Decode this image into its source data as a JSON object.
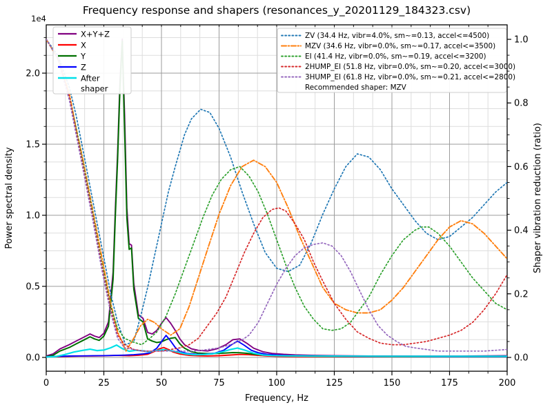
{
  "figure": {
    "title": "Frequency response and shapers (resonances_y_20201129_184323.csv)",
    "offset_text": "1e4",
    "xlabel": "Frequency, Hz",
    "ylabel_left": "Power spectral density",
    "ylabel_right": "Shaper vibration reduction (ratio)"
  },
  "chart_data": {
    "type": "line",
    "title": "Frequency response and shapers (resonances_y_20201129_184323.csv)",
    "xlabel": "Frequency, Hz",
    "ylabel": "Power spectral density",
    "ylabel_right": "Shaper vibration reduction (ratio)",
    "xlim": [
      0,
      200
    ],
    "ylim_left_raw": [
      -1000,
      23300
    ],
    "ylim_right": [
      -0.045,
      1.045
    ],
    "grid": "major+minor",
    "x_ticks": [
      0,
      25,
      50,
      75,
      100,
      125,
      150,
      175,
      200
    ],
    "x_minor_step": 8.3333,
    "y_ticks_left": [
      {
        "v": 0,
        "label": "0.0"
      },
      {
        "v": 5000,
        "label": "0.5"
      },
      {
        "v": 10000,
        "label": "1.0"
      },
      {
        "v": 15000,
        "label": "1.5"
      },
      {
        "v": 20000,
        "label": "2.0"
      }
    ],
    "y_left_minor_step": 1250,
    "y_ticks_right": [
      {
        "v": 0.0,
        "label": "0.0"
      },
      {
        "v": 0.2,
        "label": "0.2"
      },
      {
        "v": 0.4,
        "label": "0.4"
      },
      {
        "v": 0.6,
        "label": "0.6"
      },
      {
        "v": 0.8,
        "label": "0.8"
      },
      {
        "v": 1.0,
        "label": "1.0"
      }
    ],
    "y_right_minor_step": 0.05,
    "colors": {
      "major_grid": "#9b9b9b",
      "minor_grid": "#dddddd",
      "spine": "#000000",
      "legend_border": "#cccccc"
    },
    "psd_series": [
      {
        "name": "X+Y+Z",
        "color": "#800080",
        "style": "solid",
        "width": 1.9,
        "x": [
          0,
          3,
          6,
          10,
          13,
          16,
          19,
          21,
          23,
          25,
          27,
          29,
          30,
          31,
          32,
          33,
          34,
          35,
          36,
          37,
          38,
          40,
          42,
          44,
          46,
          48,
          50,
          52,
          54,
          56,
          58,
          60,
          63,
          66,
          70,
          74,
          78,
          81,
          84,
          87,
          90,
          94,
          98,
          103,
          108,
          115,
          125,
          140,
          160,
          180,
          200
        ],
        "y": [
          100,
          250,
          600,
          900,
          1150,
          1400,
          1650,
          1500,
          1400,
          1700,
          2500,
          6000,
          10500,
          14500,
          19500,
          22400,
          17000,
          10500,
          8000,
          7900,
          5200,
          3000,
          2750,
          1750,
          1650,
          1900,
          2400,
          2800,
          2400,
          1900,
          1300,
          900,
          600,
          500,
          450,
          600,
          900,
          1250,
          1300,
          1000,
          650,
          400,
          280,
          220,
          180,
          150,
          120,
          100,
          90,
          90,
          120
        ]
      },
      {
        "name": "X",
        "color": "#ff0000",
        "style": "solid",
        "width": 1.9,
        "x": [
          0,
          5,
          10,
          15,
          20,
          25,
          30,
          33,
          36,
          40,
          44,
          47,
          49,
          51,
          53,
          55,
          58,
          62,
          66,
          70,
          75,
          80,
          84,
          88,
          92,
          96,
          100,
          110,
          130,
          160,
          200
        ],
        "y": [
          40,
          60,
          80,
          90,
          100,
          110,
          140,
          130,
          120,
          150,
          220,
          420,
          600,
          700,
          560,
          380,
          240,
          140,
          110,
          100,
          120,
          170,
          210,
          190,
          140,
          100,
          80,
          60,
          50,
          45,
          45
        ]
      },
      {
        "name": "Y",
        "color": "#007000",
        "style": "solid",
        "width": 2.0,
        "x": [
          0,
          3,
          6,
          10,
          13,
          16,
          19,
          21,
          23,
          25,
          27,
          29,
          30,
          31,
          32,
          33,
          34,
          35,
          36,
          37,
          38,
          40,
          42,
          44,
          46,
          48,
          50,
          52,
          54,
          56,
          58,
          60,
          63,
          66,
          70,
          74,
          78,
          81,
          84,
          87,
          90,
          94,
          98,
          103,
          108,
          115,
          125,
          140,
          160,
          180,
          200
        ],
        "y": [
          60,
          150,
          450,
          700,
          950,
          1200,
          1450,
          1300,
          1200,
          1500,
          2200,
          5500,
          10000,
          14000,
          19000,
          22250,
          16000,
          9800,
          7600,
          7700,
          4800,
          2750,
          2500,
          1300,
          1150,
          1050,
          1100,
          1250,
          1350,
          1400,
          950,
          650,
          400,
          300,
          270,
          280,
          310,
          340,
          330,
          290,
          230,
          170,
          140,
          110,
          100,
          90,
          80,
          70,
          60,
          60,
          60
        ]
      },
      {
        "name": "Z",
        "color": "#0000ff",
        "style": "solid",
        "width": 1.9,
        "x": [
          0,
          5,
          10,
          15,
          20,
          25,
          30,
          34,
          38,
          42,
          45,
          48,
          50,
          52,
          54,
          56,
          58,
          61,
          65,
          69,
          73,
          77,
          80,
          83,
          86,
          89,
          92,
          96,
          100,
          105,
          110,
          120,
          140,
          160,
          180,
          200
        ],
        "y": [
          50,
          80,
          95,
          105,
          115,
          125,
          140,
          160,
          190,
          250,
          320,
          650,
          1100,
          1550,
          1150,
          700,
          420,
          280,
          220,
          230,
          290,
          500,
          850,
          1150,
          850,
          500,
          330,
          220,
          170,
          130,
          110,
          90,
          75,
          65,
          60,
          60
        ]
      },
      {
        "name": "After shaper",
        "label_lines": [
          "After",
          "shaper"
        ],
        "color": "#00e0e8",
        "style": "solid",
        "width": 2.2,
        "x": [
          0,
          4,
          8,
          12,
          16,
          19,
          22,
          25,
          28,
          30.5,
          33,
          36,
          39,
          42,
          45,
          48,
          51,
          54,
          57,
          60,
          64,
          68,
          72,
          76,
          80,
          83,
          86,
          90,
          94,
          98,
          103,
          110,
          125,
          150,
          200
        ],
        "y": [
          30,
          60,
          200,
          380,
          500,
          580,
          480,
          520,
          680,
          870,
          620,
          430,
          500,
          460,
          400,
          480,
          550,
          480,
          380,
          260,
          190,
          200,
          250,
          380,
          560,
          660,
          520,
          300,
          170,
          130,
          110,
          100,
          90,
          80,
          80
        ]
      }
    ],
    "shaper_series": [
      {
        "name": "ZV",
        "label": "ZV (34.4 Hz, vibr=4.0%, sm~=0.13, accel<=4500)",
        "color": "#1f77b4",
        "style": "dotted",
        "width": 1.7,
        "x": [
          0,
          5,
          10,
          13,
          16,
          20,
          24,
          28,
          31,
          34.4,
          38,
          41,
          44,
          47,
          50,
          53,
          56,
          60,
          63,
          67,
          71,
          75,
          80,
          85,
          90,
          95,
          100,
          105,
          110,
          115,
          120,
          125,
          130,
          135,
          140,
          145,
          150,
          155,
          160,
          165,
          170,
          175,
          180,
          185,
          190,
          195,
          200
        ],
        "y": [
          1.0,
          0.95,
          0.85,
          0.76,
          0.65,
          0.5,
          0.35,
          0.2,
          0.11,
          0.04,
          0.05,
          0.13,
          0.22,
          0.32,
          0.42,
          0.52,
          0.6,
          0.7,
          0.75,
          0.78,
          0.77,
          0.72,
          0.63,
          0.52,
          0.42,
          0.33,
          0.28,
          0.27,
          0.29,
          0.36,
          0.45,
          0.53,
          0.6,
          0.64,
          0.63,
          0.59,
          0.53,
          0.48,
          0.43,
          0.39,
          0.37,
          0.38,
          0.41,
          0.44,
          0.48,
          0.52,
          0.55
        ]
      },
      {
        "name": "MZV",
        "label": "MZV (34.6 Hz, vibr=0.0%, sm~=0.17, accel<=3500)",
        "color": "#ff7f0e",
        "style": "dashdot",
        "width": 1.9,
        "x": [
          0,
          5,
          10,
          13,
          16,
          20,
          24,
          28,
          31,
          34.6,
          38,
          41,
          44,
          47,
          50,
          54,
          58,
          62,
          66,
          70,
          75,
          80,
          85,
          90,
          95,
          100,
          105,
          110,
          115,
          120,
          125,
          130,
          135,
          140,
          145,
          150,
          155,
          160,
          165,
          170,
          175,
          180,
          185,
          190,
          195,
          200
        ],
        "y": [
          1.0,
          0.94,
          0.83,
          0.72,
          0.62,
          0.47,
          0.32,
          0.17,
          0.08,
          0.02,
          0.06,
          0.1,
          0.12,
          0.11,
          0.09,
          0.07,
          0.09,
          0.16,
          0.25,
          0.34,
          0.45,
          0.54,
          0.6,
          0.62,
          0.6,
          0.55,
          0.47,
          0.38,
          0.3,
          0.22,
          0.17,
          0.15,
          0.14,
          0.14,
          0.15,
          0.18,
          0.22,
          0.27,
          0.32,
          0.37,
          0.41,
          0.43,
          0.42,
          0.39,
          0.35,
          0.31
        ]
      },
      {
        "name": "EI",
        "label": "EI (41.4 Hz, vibr=0.0%, sm~=0.19, accel<=3200)",
        "color": "#2ca02c",
        "style": "dotted",
        "width": 1.7,
        "x": [
          0,
          5,
          10,
          13,
          16,
          20,
          24,
          28,
          31,
          34,
          37,
          41.4,
          45,
          48,
          52,
          56,
          60,
          64,
          68,
          72,
          76,
          80,
          84,
          88,
          92,
          96,
          100,
          104,
          108,
          112,
          116,
          120,
          124,
          128,
          132,
          136,
          140,
          145,
          150,
          155,
          160,
          163,
          166,
          170,
          175,
          180,
          185,
          190,
          195,
          200
        ],
        "y": [
          1.0,
          0.94,
          0.82,
          0.72,
          0.61,
          0.46,
          0.3,
          0.16,
          0.09,
          0.06,
          0.05,
          0.04,
          0.06,
          0.08,
          0.13,
          0.2,
          0.28,
          0.36,
          0.44,
          0.51,
          0.56,
          0.59,
          0.6,
          0.57,
          0.52,
          0.45,
          0.37,
          0.29,
          0.22,
          0.16,
          0.12,
          0.09,
          0.085,
          0.09,
          0.11,
          0.15,
          0.19,
          0.26,
          0.32,
          0.37,
          0.4,
          0.41,
          0.41,
          0.39,
          0.35,
          0.3,
          0.25,
          0.21,
          0.17,
          0.15
        ]
      },
      {
        "name": "2HUMP_EI",
        "label": "2HUMP_EI (51.8 Hz, vibr=0.0%, sm~=0.20, accel<=3000)",
        "color": "#d62728",
        "style": "dotted",
        "width": 1.7,
        "x": [
          0,
          5,
          10,
          13,
          16,
          20,
          24,
          28,
          31,
          34,
          38,
          42,
          46,
          50,
          54,
          58,
          62,
          66,
          70,
          74,
          78,
          82,
          86,
          90,
          94,
          98,
          101,
          104,
          108,
          112,
          116,
          120,
          125,
          130,
          135,
          140,
          145,
          150,
          155,
          160,
          165,
          170,
          175,
          180,
          185,
          190,
          195,
          200
        ],
        "y": [
          1.0,
          0.94,
          0.82,
          0.71,
          0.6,
          0.45,
          0.29,
          0.15,
          0.07,
          0.04,
          0.025,
          0.02,
          0.02,
          0.02,
          0.025,
          0.03,
          0.04,
          0.06,
          0.1,
          0.14,
          0.19,
          0.26,
          0.33,
          0.39,
          0.44,
          0.465,
          0.47,
          0.46,
          0.42,
          0.37,
          0.3,
          0.24,
          0.17,
          0.12,
          0.08,
          0.06,
          0.045,
          0.04,
          0.04,
          0.045,
          0.05,
          0.06,
          0.07,
          0.085,
          0.11,
          0.15,
          0.2,
          0.26
        ]
      },
      {
        "name": "3HUMP_EI",
        "label": "3HUMP_EI (61.8 Hz, vibr=0.0%, sm~=0.21, accel<=2800)",
        "color": "#9467bd",
        "style": "dotted",
        "width": 1.7,
        "x": [
          0,
          5,
          10,
          13,
          16,
          20,
          24,
          28,
          31,
          34,
          38,
          42,
          46,
          50,
          55,
          60,
          65,
          70,
          75,
          80,
          85,
          88,
          92,
          96,
          100,
          104,
          108,
          112,
          116,
          120,
          124,
          128,
          132,
          136,
          140,
          144,
          148,
          152,
          156,
          160,
          165,
          170,
          180,
          190,
          200
        ],
        "y": [
          1.0,
          0.94,
          0.81,
          0.7,
          0.59,
          0.44,
          0.28,
          0.14,
          0.06,
          0.03,
          0.025,
          0.02,
          0.02,
          0.02,
          0.02,
          0.02,
          0.02,
          0.025,
          0.03,
          0.04,
          0.055,
          0.07,
          0.11,
          0.17,
          0.23,
          0.28,
          0.32,
          0.345,
          0.355,
          0.36,
          0.35,
          0.32,
          0.27,
          0.21,
          0.15,
          0.1,
          0.07,
          0.05,
          0.035,
          0.03,
          0.025,
          0.02,
          0.02,
          0.02,
          0.025
        ]
      }
    ],
    "legend_note": "Recommended shaper: MZV",
    "legend_left_position": "upper left",
    "legend_right_position": "upper right"
  }
}
